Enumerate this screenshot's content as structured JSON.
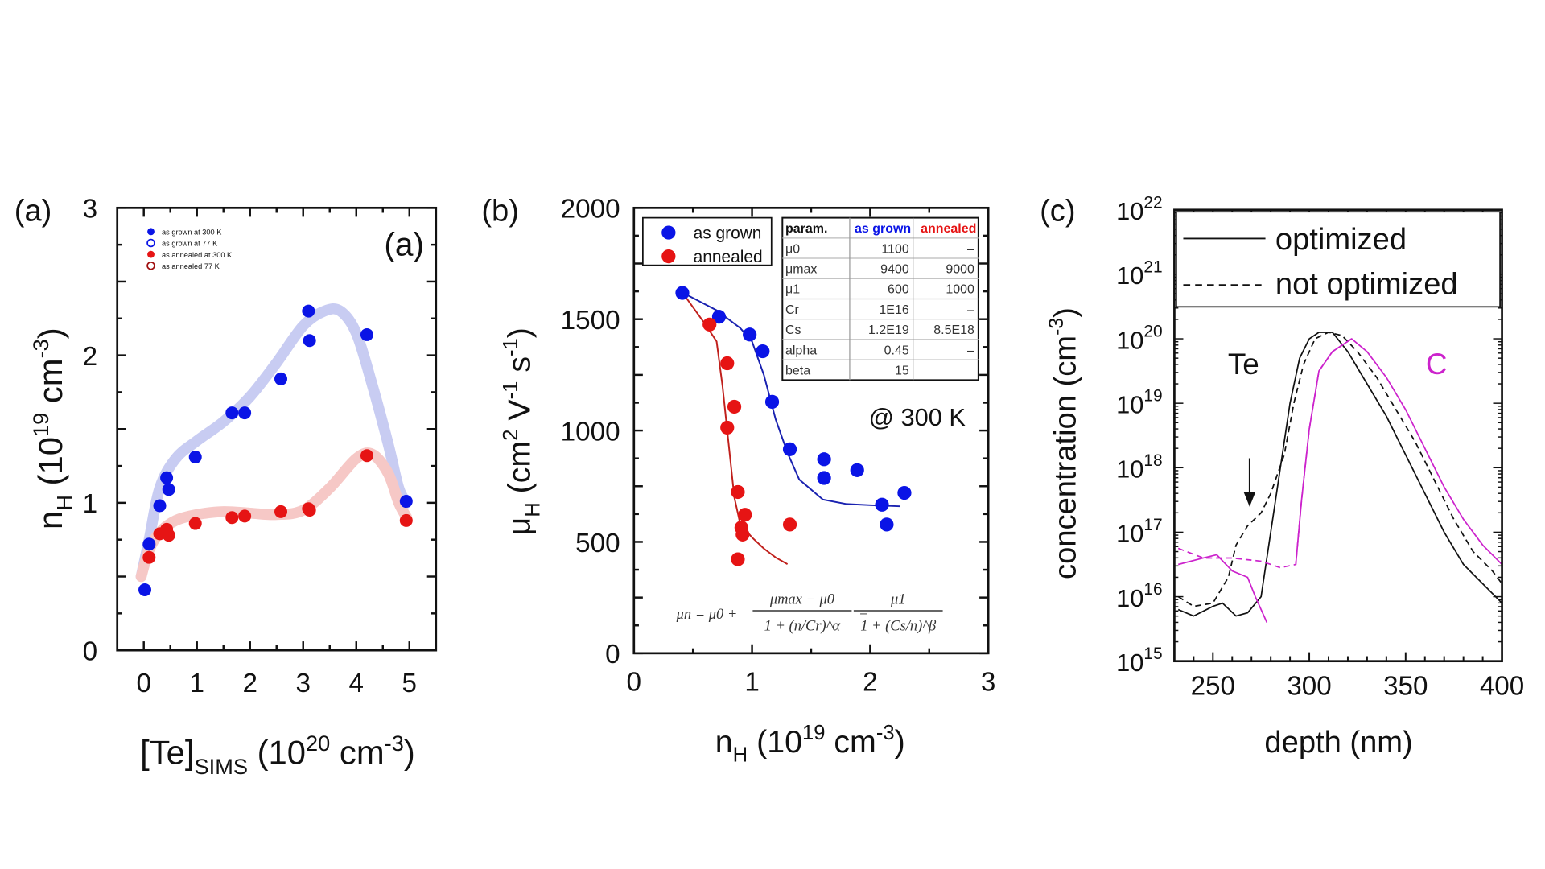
{
  "chart_data": [
    {
      "type": "scatter",
      "panel_label": "(a)",
      "inner_label": "(a)",
      "xlabel": {
        "main": "[Te]",
        "sub": "SIMS",
        "rest": " (10",
        "sup": "20",
        "unit": " cm",
        "unit_sup": "-3",
        "close": ")"
      },
      "ylabel": {
        "main": "n",
        "sub": "H",
        "rest": " (10",
        "sup": "19",
        "unit": " cm",
        "unit_sup": "-3",
        "close": ")"
      },
      "xlim": [
        -0.5,
        5.5
      ],
      "ylim": [
        0,
        3
      ],
      "xticks": [
        "0",
        "1",
        "2",
        "3",
        "4",
        "5"
      ],
      "yticks": [
        "0",
        "1",
        "2",
        "3"
      ],
      "legend": [
        "as grown at 300 K",
        "as grown at 77 K",
        "as annealed at 300 K",
        "as annealed 77 K"
      ],
      "colors": {
        "as_grown": "#0a14e6",
        "annealed": "#e61414",
        "as_grown_guide": "#c8ccf2",
        "annealed_guide": "#f6c8c6"
      },
      "series": [
        {
          "name": "as grown at 300 K",
          "x": [
            0.02,
            0.1,
            0.3,
            0.43,
            0.47,
            0.97,
            1.66,
            1.9,
            2.58,
            3.1,
            3.12,
            4.2,
            4.94
          ],
          "y": [
            0.41,
            0.72,
            0.98,
            1.17,
            1.09,
            1.31,
            1.61,
            1.61,
            1.84,
            2.3,
            2.1,
            2.14,
            1.01
          ]
        },
        {
          "name": "as annealed at 300 K",
          "x": [
            0.1,
            0.3,
            0.43,
            0.47,
            0.97,
            1.66,
            1.9,
            2.58,
            3.1,
            3.12,
            4.2,
            4.94
          ],
          "y": [
            0.63,
            0.79,
            0.82,
            0.78,
            0.86,
            0.9,
            0.91,
            0.94,
            0.96,
            0.95,
            1.32,
            0.88
          ]
        }
      ],
      "guides": [
        {
          "x": [
            -0.05,
            0.1,
            0.3,
            0.6,
            1.0,
            1.5,
            2.0,
            2.5,
            3.0,
            3.4,
            3.7,
            4.0,
            4.3,
            4.6,
            4.8,
            4.95
          ],
          "y": [
            0.5,
            0.75,
            1.1,
            1.3,
            1.42,
            1.55,
            1.72,
            1.95,
            2.2,
            2.3,
            2.3,
            2.15,
            1.8,
            1.4,
            1.1,
            1.0
          ]
        },
        {
          "x": [
            -0.05,
            0.1,
            0.3,
            0.6,
            1.0,
            1.5,
            2.0,
            2.5,
            3.0,
            3.5,
            4.0,
            4.3,
            4.6,
            4.8,
            4.95
          ],
          "y": [
            0.5,
            0.68,
            0.8,
            0.88,
            0.92,
            0.94,
            0.93,
            0.92,
            0.95,
            1.1,
            1.3,
            1.33,
            1.2,
            1.0,
            0.9
          ]
        }
      ]
    },
    {
      "type": "scatter",
      "panel_label": "(b)",
      "annotation": "@ 300 K",
      "xlabel": {
        "main": "n",
        "sub": "H",
        "rest": " (10",
        "sup": "19",
        "unit": " cm",
        "unit_sup": "-3",
        "close": ")"
      },
      "ylabel": {
        "main": "μ",
        "sub": "H",
        "rest": " (cm",
        "sup": "2",
        "unit": " V",
        "unit_sup": "-1",
        "s": " s",
        "s_sup": "-1",
        "close": ")"
      },
      "xlim": [
        0,
        3
      ],
      "ylim": [
        0,
        2000
      ],
      "xticks": [
        "0",
        "1",
        "2",
        "3"
      ],
      "yticks": [
        "0",
        "500",
        "1000",
        "1500",
        "2000"
      ],
      "legend": [
        "as grown",
        "annealed"
      ],
      "colors": {
        "as_grown": "#0a14e6",
        "annealed": "#e61414",
        "fit_as_grown": "#1a22b0",
        "fit_annealed": "#c0201c"
      },
      "series": [
        {
          "name": "as grown",
          "x": [
            0.41,
            0.72,
            0.98,
            1.09,
            1.17,
            1.32,
            1.61,
            1.61,
            1.89,
            2.1,
            2.14,
            2.29
          ],
          "y": [
            1618,
            1511,
            1431,
            1356,
            1129,
            916,
            871,
            787,
            822,
            667,
            578,
            720
          ]
        },
        {
          "name": "annealed",
          "x": [
            0.64,
            0.79,
            0.85,
            0.79,
            0.88,
            0.94,
            0.91,
            0.92,
            0.88,
            1.32
          ],
          "y": [
            1476,
            1302,
            1107,
            1013,
            724,
            622,
            564,
            533,
            422,
            578
          ]
        }
      ],
      "fits": [
        {
          "x": [
            0.41,
            0.7,
            0.9,
            1.0,
            1.1,
            1.2,
            1.3,
            1.4,
            1.6,
            1.8,
            2.0,
            2.25
          ],
          "y": [
            1620,
            1540,
            1460,
            1400,
            1250,
            1050,
            900,
            780,
            690,
            670,
            665,
            660
          ]
        },
        {
          "x": [
            0.41,
            0.6,
            0.7,
            0.75,
            0.8,
            0.85,
            0.9,
            1.0,
            1.1,
            1.2,
            1.3
          ],
          "y": [
            1620,
            1480,
            1400,
            1200,
            950,
            700,
            580,
            520,
            470,
            430,
            400
          ]
        }
      ],
      "param_table": {
        "headers": [
          "param.",
          "as grown",
          "annealed"
        ],
        "rows": [
          [
            "μ0",
            "1100",
            "–"
          ],
          [
            "μmax",
            "9400",
            "9000"
          ],
          [
            "μ1",
            "600",
            "1000"
          ],
          [
            "Cr",
            "1E16",
            "–"
          ],
          [
            "Cs",
            "1.2E19",
            "8.5E18"
          ],
          [
            "alpha",
            "0.45",
            "–"
          ],
          [
            "beta",
            "15",
            ""
          ]
        ]
      },
      "equation": {
        "lhs": "μn = μ0 +",
        "frac1_num": "μmax − μ0",
        "frac1_den": "1 + (n/Cr)^α",
        "minus": "−",
        "frac2_num": "μ1",
        "frac2_den": "1 + (Cs/n)^β"
      }
    },
    {
      "type": "line",
      "panel_label": "(c)",
      "xlabel": "depth (nm)",
      "ylabel": {
        "main": "concentration (cm",
        "sup": "-3",
        "close": ")"
      },
      "xlim": [
        230,
        400
      ],
      "ylim_log10": [
        15,
        22
      ],
      "yscale": "log",
      "xticks": [
        "250",
        "300",
        "350",
        "400"
      ],
      "yticks": [
        {
          "base": "10",
          "exp": "15"
        },
        {
          "base": "10",
          "exp": "16"
        },
        {
          "base": "10",
          "exp": "17"
        },
        {
          "base": "10",
          "exp": "18"
        },
        {
          "base": "10",
          "exp": "19"
        },
        {
          "base": "10",
          "exp": "20"
        },
        {
          "base": "10",
          "exp": "21"
        },
        {
          "base": "10",
          "exp": "22"
        }
      ],
      "legend": [
        "optimized",
        "not optimized"
      ],
      "annotations": [
        "Te",
        "C"
      ],
      "colors": {
        "Te": "#111111",
        "C": "#cc22cc"
      },
      "series": [
        {
          "element": "Te",
          "style": "solid",
          "x": [
            232,
            240,
            250,
            255,
            262,
            268,
            275,
            280,
            285,
            290,
            295,
            300,
            305,
            312,
            320,
            330,
            340,
            350,
            360,
            370,
            380,
            390,
            400
          ],
          "log10_y": [
            15.8,
            15.7,
            15.85,
            15.9,
            15.7,
            15.75,
            16.0,
            17.0,
            18.0,
            19.0,
            19.7,
            20.0,
            20.1,
            20.1,
            19.8,
            19.3,
            18.8,
            18.2,
            17.6,
            17.0,
            16.5,
            16.2,
            15.9
          ]
        },
        {
          "element": "Te",
          "style": "dashed",
          "x": [
            232,
            240,
            250,
            258,
            262,
            268,
            275,
            280,
            287,
            292,
            297,
            303,
            310,
            317,
            325,
            335,
            345,
            355,
            365,
            375,
            385,
            395,
            400
          ],
          "log10_y": [
            16.0,
            15.85,
            15.9,
            16.3,
            16.8,
            17.1,
            17.3,
            17.6,
            18.2,
            19.0,
            19.6,
            20.0,
            20.1,
            20.05,
            19.8,
            19.4,
            18.9,
            18.4,
            17.8,
            17.2,
            16.7,
            16.4,
            16.2
          ]
        },
        {
          "element": "C",
          "style": "solid",
          "x": [
            232,
            245,
            252,
            260,
            268,
            272,
            278
          ],
          "log10_y": [
            16.5,
            16.6,
            16.65,
            16.4,
            16.3,
            16.0,
            15.6
          ]
        },
        {
          "element": "C",
          "style": "dashed",
          "x": [
            232,
            245,
            260,
            275,
            285,
            293,
            296,
            300,
            305,
            312,
            322
          ],
          "log10_y": [
            16.75,
            16.6,
            16.6,
            16.55,
            16.45,
            16.5,
            17.5,
            18.6,
            19.5,
            19.8,
            20.0
          ]
        },
        {
          "element": "C",
          "style": "solid",
          "x": [
            293,
            296,
            300,
            305,
            312,
            322,
            330,
            340,
            350,
            360,
            370,
            380,
            390,
            400
          ],
          "log10_y": [
            16.5,
            17.5,
            18.6,
            19.5,
            19.8,
            20.0,
            19.8,
            19.4,
            18.9,
            18.3,
            17.7,
            17.2,
            16.8,
            16.5
          ]
        }
      ]
    }
  ]
}
